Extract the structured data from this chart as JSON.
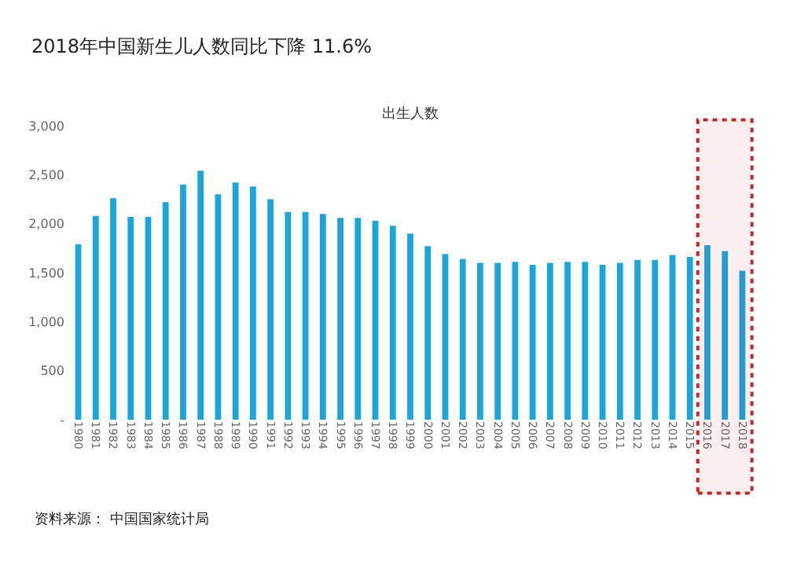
{
  "chart_data": {
    "type": "bar",
    "title": "2018年中国新生儿人数同比下降 11.6%",
    "subtitle": "出生人数",
    "categories": [
      "1980",
      "1981",
      "1982",
      "1983",
      "1984",
      "1985",
      "1986",
      "1987",
      "1988",
      "1989",
      "1990",
      "1991",
      "1992",
      "1993",
      "1994",
      "1995",
      "1996",
      "1997",
      "1998",
      "1999",
      "2000",
      "2001",
      "2002",
      "2003",
      "2004",
      "2005",
      "2006",
      "2007",
      "2008",
      "2009",
      "2010",
      "2011",
      "2012",
      "2013",
      "2014",
      "2015",
      "2016",
      "2017",
      "2018"
    ],
    "values": [
      1790,
      2080,
      2260,
      2070,
      2070,
      2220,
      2400,
      2540,
      2300,
      2420,
      2380,
      2250,
      2120,
      2120,
      2100,
      2060,
      2060,
      2030,
      1980,
      1900,
      1770,
      1690,
      1640,
      1600,
      1600,
      1610,
      1580,
      1600,
      1610,
      1610,
      1580,
      1600,
      1630,
      1630,
      1680,
      1660,
      1780,
      1720,
      1520
    ],
    "color": "#1aa6dc",
    "ylim": [
      0,
      3000
    ],
    "yticks": [
      {
        "value": 0,
        "label": "-"
      },
      500,
      {
        "value": 1000,
        "label": "1,000"
      },
      {
        "value": 1500,
        "label": "1,500"
      },
      {
        "value": 2000,
        "label": "2,000"
      },
      {
        "value": 2500,
        "label": "2,500"
      },
      {
        "value": 3000,
        "label": "3,000"
      }
    ],
    "grid": false,
    "bands": [
      {
        "axis": "x",
        "from": "2016",
        "to": "2018",
        "color": "#c0282d"
      }
    ],
    "annotations": [
      "资料来源： 中国国家统计局"
    ]
  }
}
